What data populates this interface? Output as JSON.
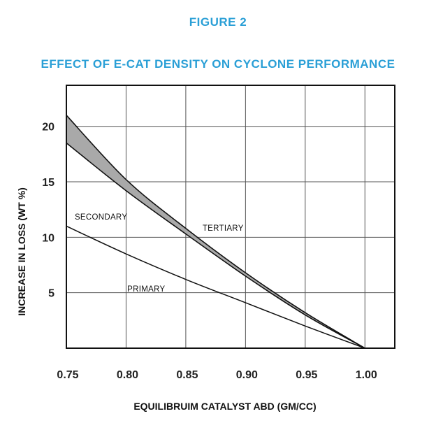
{
  "figure_label": "FIGURE 2",
  "colors": {
    "title": "#2a9fd6",
    "grid": "#555555",
    "band": "#a9a9a9",
    "line": "#111111"
  },
  "chart_data": {
    "type": "line",
    "title": "EFFECT OF E-CAT DENSITY ON CYCLONE PERFORMANCE",
    "xlabel": "EQUILIBRUIM CATALYST ABD (GM/CC)",
    "ylabel": "INCREASE IN LOSS (WT %)",
    "xlim": [
      0.75,
      1.025
    ],
    "ylim": [
      0,
      23.7
    ],
    "xticks": [
      "0.75",
      "0.80",
      "0.85",
      "0.90",
      "0.95",
      "1.00"
    ],
    "yticks": [
      "5",
      "10",
      "15",
      "20"
    ],
    "grid": true,
    "series": [
      {
        "name": "PRIMARY",
        "x": [
          0.75,
          0.8,
          0.85,
          0.9,
          0.95,
          1.0
        ],
        "y": [
          11.0,
          8.5,
          6.2,
          4.1,
          2.0,
          0.0
        ]
      },
      {
        "name": "SECONDARY",
        "x": [
          0.75,
          0.8,
          0.85,
          0.9,
          0.95,
          1.0
        ],
        "y": [
          18.5,
          14.2,
          10.3,
          6.5,
          3.0,
          0.0
        ]
      },
      {
        "name": "TERTIARY",
        "x": [
          0.75,
          0.8,
          0.85,
          0.9,
          0.95,
          1.0
        ],
        "y": [
          21.0,
          15.2,
          10.8,
          6.8,
          3.2,
          0.0
        ]
      }
    ],
    "annotations": [
      {
        "text": "SECONDARY",
        "x": 0.757,
        "y": 11.6
      },
      {
        "text": "TERTIARY",
        "x": 0.864,
        "y": 10.6
      },
      {
        "text": "PRIMARY",
        "x": 0.801,
        "y": 5.1
      }
    ]
  }
}
